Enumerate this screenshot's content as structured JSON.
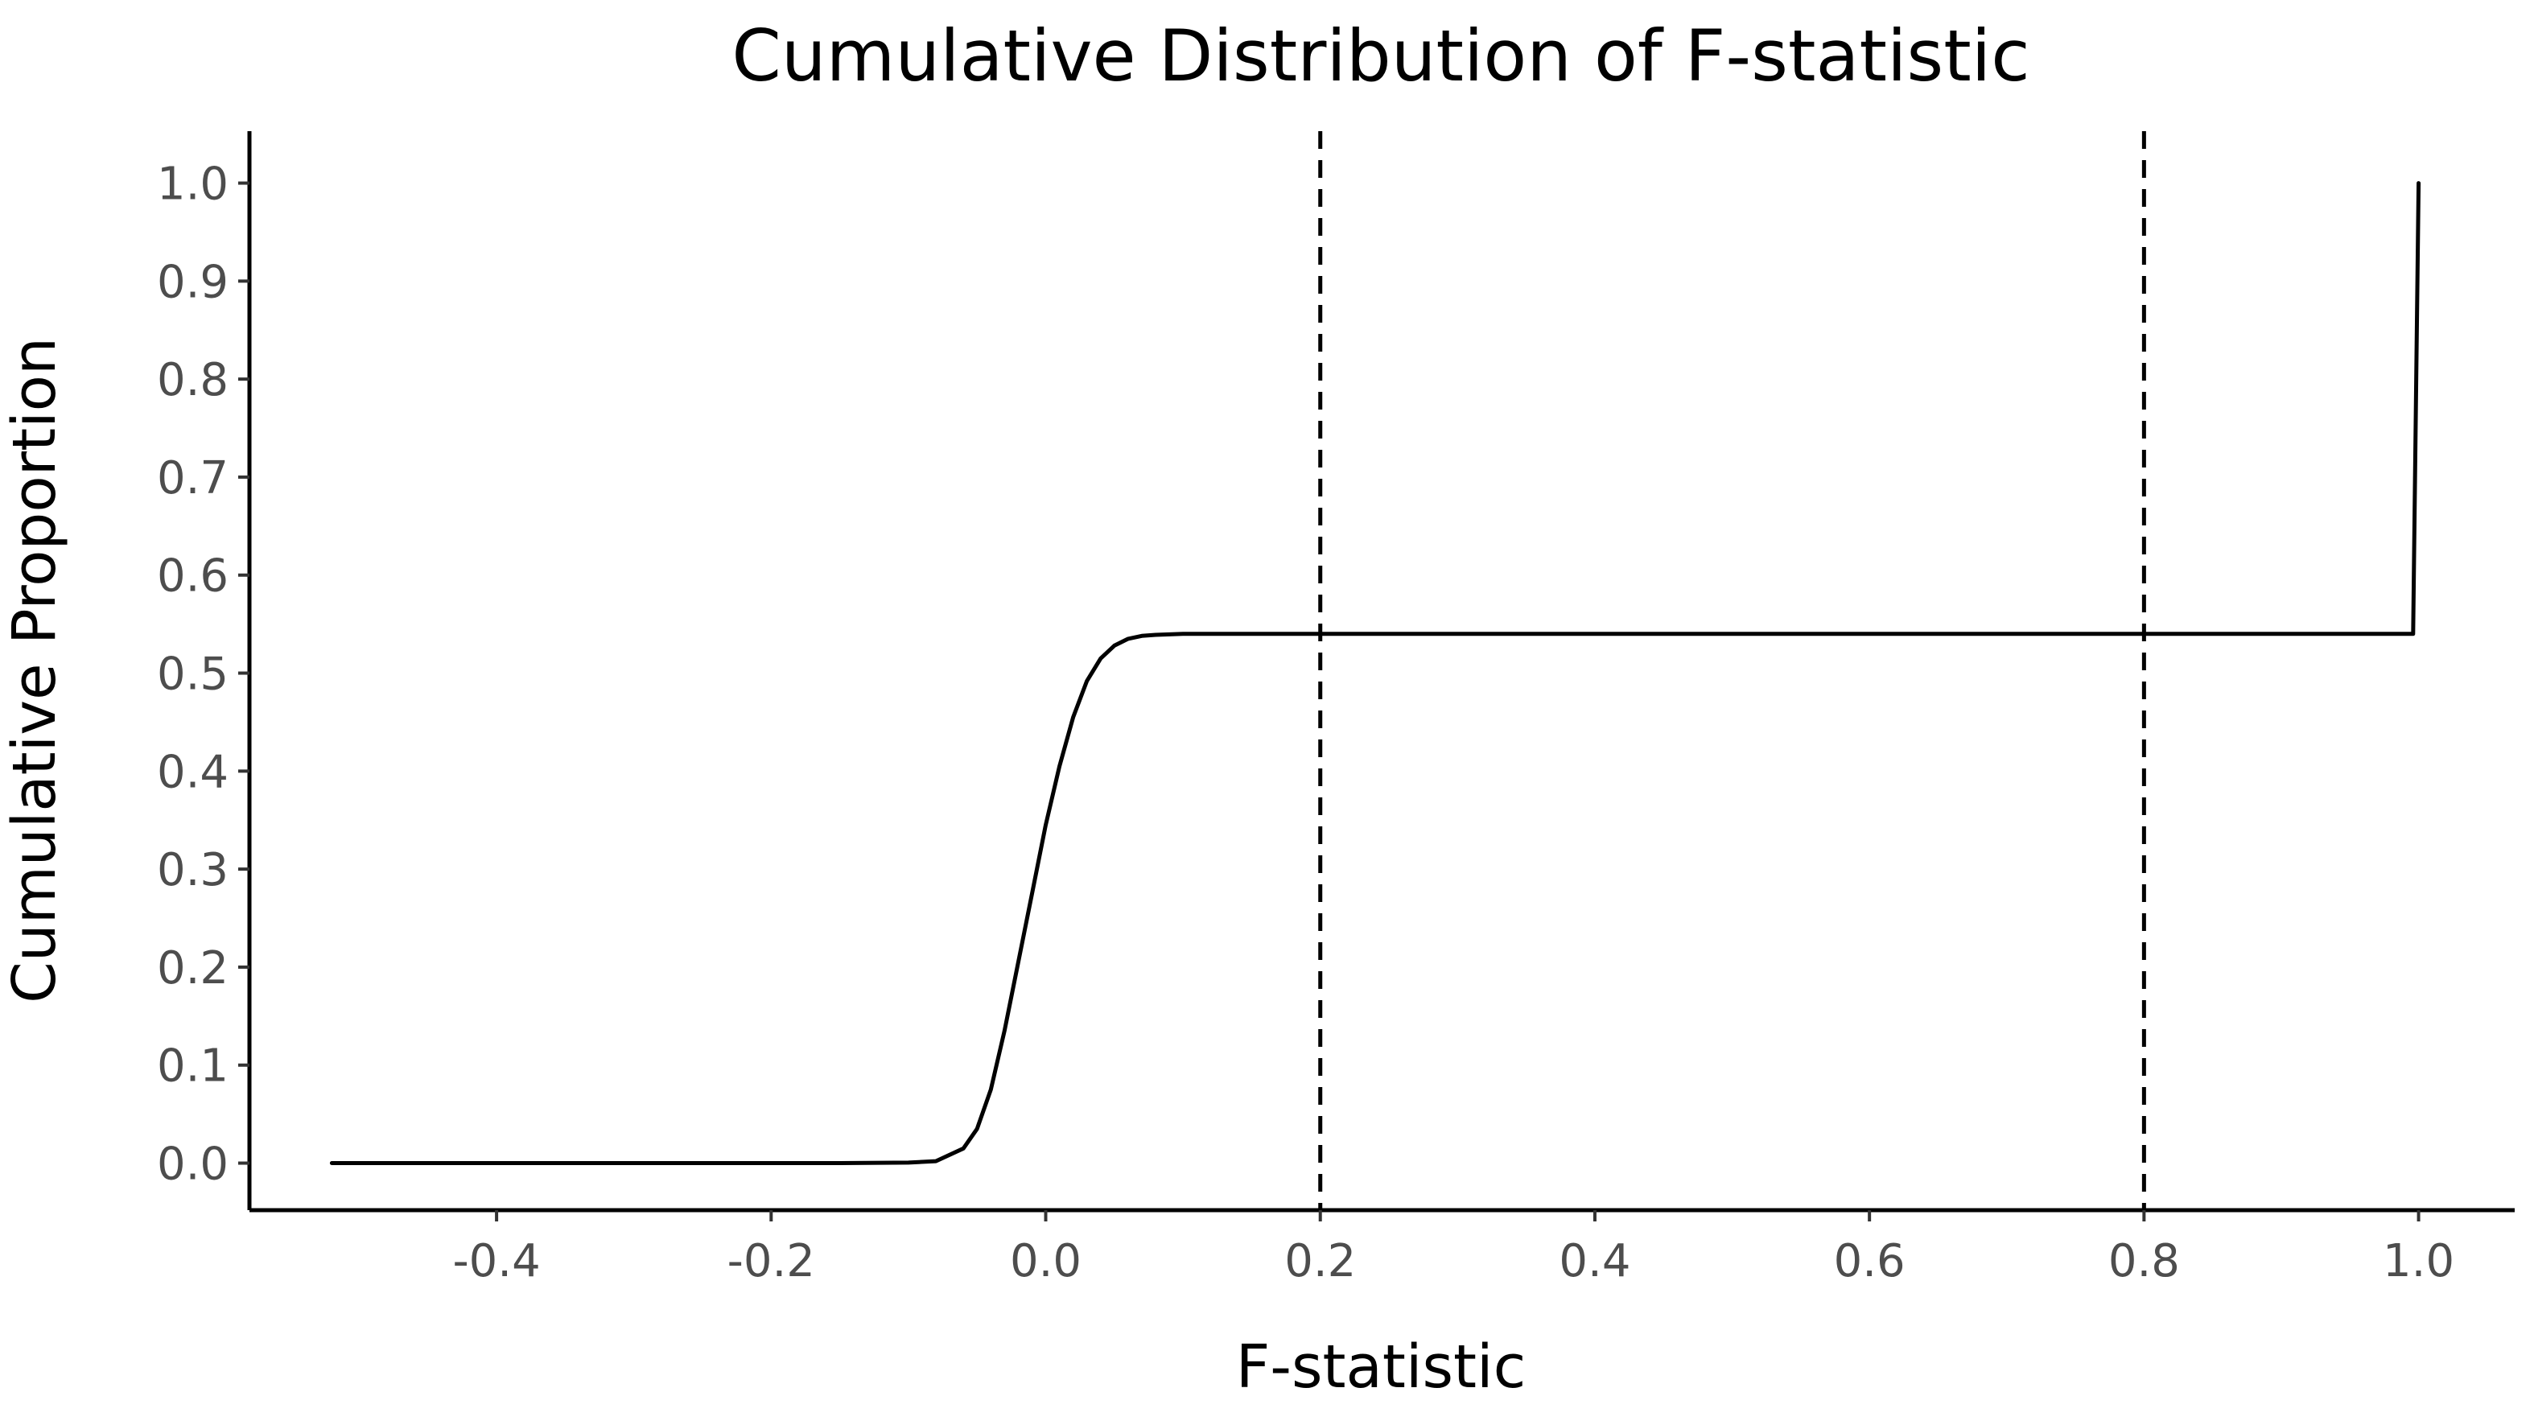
{
  "chart_data": {
    "type": "line",
    "title": "Cumulative Distribution of F-statistic",
    "xlabel": "F-statistic",
    "ylabel": "Cumulative Proportion",
    "xlim": [
      -0.58,
      1.07
    ],
    "ylim": [
      -0.048,
      1.053
    ],
    "x_ticks": [
      -0.4,
      -0.2,
      0.0,
      0.2,
      0.4,
      0.6,
      0.8,
      1.0
    ],
    "x_tick_labels": [
      "-0.4",
      "-0.2",
      "0.0",
      "0.2",
      "0.4",
      "0.6",
      "0.8",
      "1.0"
    ],
    "y_ticks": [
      0.0,
      0.1,
      0.2,
      0.3,
      0.4,
      0.5,
      0.6,
      0.7,
      0.8,
      0.9,
      1.0
    ],
    "y_tick_labels": [
      "0.0",
      "0.1",
      "0.2",
      "0.3",
      "0.4",
      "0.5",
      "0.6",
      "0.7",
      "0.8",
      "0.9",
      "1.0"
    ],
    "grid": false,
    "reference_lines": [
      {
        "axis": "x",
        "value": 0.2,
        "style": "dashed",
        "color": "#000000"
      },
      {
        "axis": "x",
        "value": 0.8,
        "style": "dashed",
        "color": "#000000"
      }
    ],
    "series": [
      {
        "color": "#000000",
        "x": [
          -0.52,
          -0.3,
          -0.15,
          -0.1,
          -0.08,
          -0.06,
          -0.05,
          -0.04,
          -0.03,
          -0.02,
          -0.01,
          0.0,
          0.01,
          0.02,
          0.03,
          0.04,
          0.05,
          0.06,
          0.07,
          0.08,
          0.1,
          0.2,
          0.4,
          0.6,
          0.8,
          0.996,
          1.0
        ],
        "y": [
          0.0,
          0.0,
          0.0,
          0.0005,
          0.002,
          0.015,
          0.035,
          0.075,
          0.135,
          0.205,
          0.275,
          0.345,
          0.405,
          0.455,
          0.492,
          0.515,
          0.528,
          0.535,
          0.538,
          0.539,
          0.54,
          0.54,
          0.54,
          0.54,
          0.54,
          0.54,
          1.0
        ]
      }
    ]
  }
}
